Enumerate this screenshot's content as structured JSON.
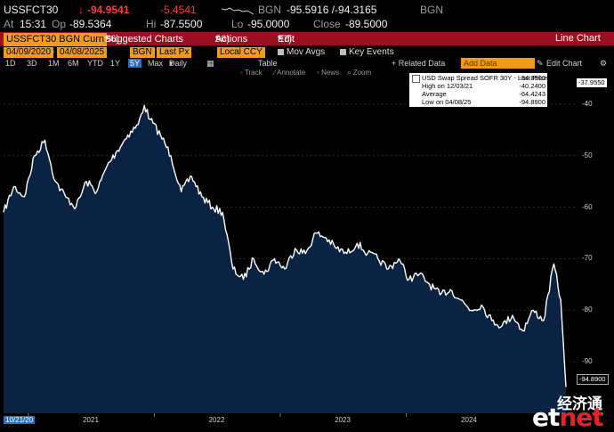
{
  "header": {
    "ticker": "USSFCT30",
    "arrow": "↓",
    "last": "-94.9541",
    "change": "-5.4541",
    "source_left": "BGN",
    "bid_ask": "-95.5916 /-94.3165",
    "source_right": "BGN",
    "at_label": "At",
    "time": "15:31",
    "op_label": "Op",
    "open": "-89.5364",
    "hi_label": "Hi",
    "high": "-87.5500",
    "lo_label": "Lo",
    "low": "-95.0000",
    "close_label": "Close",
    "close": "-89.5000"
  },
  "toolbar": {
    "security_field": "USSFCT30 BGN Curn",
    "suggested_num": "96)",
    "suggested": "Suggested Charts",
    "actions_num": "96)",
    "actions": "Actions",
    "edit_num": "97)",
    "edit": "Edit",
    "chart_type": "Line Chart"
  },
  "controls": {
    "start_date": "04/09/2020",
    "end_date": "04/08/2025",
    "source": "BGN",
    "field": "Last Px",
    "currency": "Local CCY",
    "mov_avgs": "Mov Avgs",
    "key_events": "Key Events",
    "related_data": "+ Related Data",
    "add_data_placeholder": "Add Data",
    "edit_chart": "Edit Chart"
  },
  "ranges": {
    "items": [
      "1D",
      "3D",
      "1M",
      "6M",
      "YTD",
      "1Y",
      "5Y",
      "Max"
    ],
    "selected": "5Y",
    "frequency": "Daily",
    "table": "Table"
  },
  "tools": {
    "track": "Track",
    "annotate": "Annotate",
    "news": "News",
    "zoom": "Zoom"
  },
  "legend": {
    "series_name": "USD Swap Spread SOFR 30Y - Last Price",
    "series_value": "-94.8900",
    "high_label": "High on 12/03/21",
    "high_value": "-40.2400",
    "avg_label": "Average",
    "avg_value": "-64.4243",
    "low_label": "Low on 04/08/25",
    "low_value": "-94.8900"
  },
  "callouts": {
    "top": "-37.9550",
    "last": "-94.8900"
  },
  "watermark": {
    "brand_cn": "经济通",
    "brand_en": "etnet"
  },
  "x_start_label": "10/21/20",
  "colors": {
    "accent": "#f39a1b",
    "toolbar": "#9b0f20",
    "area_fill": "#0a2342",
    "line": "#ffffff",
    "down": "#ff3b3b"
  },
  "chart_data": {
    "type": "area",
    "title": "USD Swap Spread SOFR 30Y - Last Price",
    "xlabel": "",
    "ylabel": "",
    "ylim": [
      -100,
      -35
    ],
    "y_ticks": [
      -40,
      -50,
      -60,
      -70,
      -80,
      -90
    ],
    "x_ticks": [
      "2021",
      "2022",
      "2023",
      "2024"
    ],
    "xlim": [
      "2020-10-21",
      "2025-04-08"
    ],
    "grid": true,
    "x": [
      "2020-10-21",
      "2020-11-20",
      "2020-12-20",
      "2021-01-19",
      "2021-02-18",
      "2021-03-20",
      "2021-04-19",
      "2021-05-19",
      "2021-06-18",
      "2021-07-18",
      "2021-08-17",
      "2021-09-16",
      "2021-10-16",
      "2021-11-15",
      "2021-12-03",
      "2021-12-20",
      "2022-01-19",
      "2022-02-18",
      "2022-03-20",
      "2022-04-19",
      "2022-05-19",
      "2022-06-18",
      "2022-07-18",
      "2022-08-17",
      "2022-09-16",
      "2022-10-16",
      "2022-11-15",
      "2022-12-15",
      "2023-01-14",
      "2023-02-13",
      "2023-03-15",
      "2023-04-14",
      "2023-05-14",
      "2023-06-13",
      "2023-07-13",
      "2023-08-12",
      "2023-09-11",
      "2023-10-11",
      "2023-11-10",
      "2023-12-10",
      "2024-01-09",
      "2024-02-08",
      "2024-03-09",
      "2024-04-08",
      "2024-05-08",
      "2024-06-07",
      "2024-07-07",
      "2024-08-06",
      "2024-09-05",
      "2024-10-05",
      "2024-11-04",
      "2024-12-04",
      "2025-01-03",
      "2025-02-02",
      "2025-03-04",
      "2025-03-24",
      "2025-04-08"
    ],
    "series": [
      {
        "name": "USD Swap Spread SOFR 30Y - Last Price",
        "values": [
          -61,
          -56,
          -58,
          -50,
          -47,
          -55,
          -58,
          -60,
          -55,
          -57,
          -52,
          -49,
          -46,
          -44,
          -40.24,
          -43,
          -46,
          -50,
          -57,
          -54,
          -58,
          -60,
          -61,
          -72,
          -74,
          -70,
          -73,
          -70,
          -72,
          -68,
          -69,
          -65,
          -66,
          -68,
          -69,
          -67,
          -69,
          -70,
          -72,
          -70,
          -74,
          -73,
          -75,
          -77,
          -76,
          -78,
          -80,
          -79,
          -82,
          -83,
          -81,
          -84,
          -80,
          -82,
          -71,
          -78,
          -94.89
        ]
      }
    ]
  }
}
